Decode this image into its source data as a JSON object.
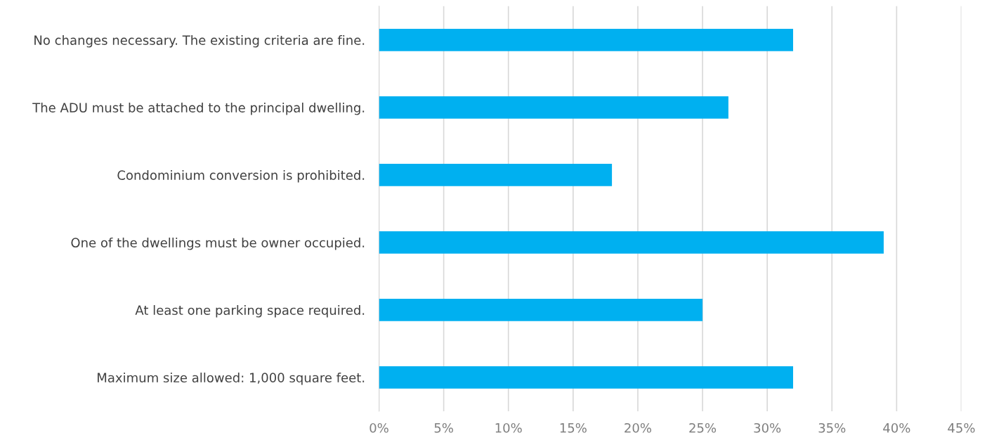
{
  "chart_data": {
    "type": "bar",
    "orientation": "horizontal",
    "categories": [
      "No changes necessary. The existing criteria are fine.",
      "The ADU must be attached to the principal dwelling.",
      "Condominium conversion is prohibited.",
      "One of the dwellings must be owner occupied.",
      "At least one parking space required.",
      "Maximum size allowed: 1,000 square feet."
    ],
    "values": [
      32,
      27,
      18,
      39,
      25,
      32
    ],
    "color": "#00b0f0",
    "xlim": [
      0,
      45
    ],
    "xticks": [
      {
        "value": 0,
        "label": "0%"
      },
      {
        "value": 5,
        "label": "5%"
      },
      {
        "value": 10,
        "label": "10%"
      },
      {
        "value": 15,
        "label": "15%"
      },
      {
        "value": 20,
        "label": "20%"
      },
      {
        "value": 25,
        "label": "25%"
      },
      {
        "value": 30,
        "label": "30%"
      },
      {
        "value": 35,
        "label": "35%"
      },
      {
        "value": 40,
        "label": "40%"
      },
      {
        "value": 45,
        "label": "45%"
      }
    ],
    "grid": "x",
    "legend": false
  }
}
